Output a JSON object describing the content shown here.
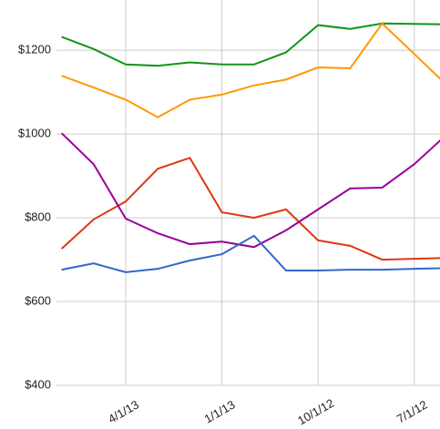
{
  "chart_data": {
    "type": "line",
    "categories": [
      null,
      null,
      "4/1/13",
      null,
      null,
      "1/1/13",
      null,
      null,
      "10/1/12",
      null,
      null,
      "7/1/12",
      null
    ],
    "series": [
      {
        "color": "#109618",
        "values": [
          1232,
          1203,
          1166,
          1163,
          1171,
          1166,
          1166,
          1195,
          1260,
          1251,
          1264,
          1263,
          1262
        ]
      },
      {
        "color": "#ff9900",
        "values": [
          1139,
          1111,
          1082,
          1040,
          1082,
          1094,
          1116,
          1130,
          1159,
          1157,
          1264,
          1191,
          1118
        ]
      },
      {
        "color": "#dc3912",
        "values": [
          726,
          796,
          839,
          917,
          943,
          813,
          800,
          820,
          746,
          733,
          700,
          702,
          704
        ]
      },
      {
        "color": "#990099",
        "values": [
          1002,
          928,
          798,
          763,
          737,
          743,
          730,
          770,
          820,
          870,
          872,
          928,
          998
        ]
      },
      {
        "color": "#3366cc",
        "values": [
          676,
          691,
          670,
          678,
          698,
          713,
          757,
          674,
          674,
          676,
          676,
          678,
          680
        ]
      }
    ],
    "ylim": [
      400,
      1320
    ],
    "yticks": [
      {
        "value": 400,
        "label": "$400"
      },
      {
        "value": 600,
        "label": "$600"
      },
      {
        "value": 800,
        "label": "$800"
      },
      {
        "value": 1000,
        "label": "$1000"
      },
      {
        "value": 1200,
        "label": "$1200"
      }
    ],
    "grid": true
  }
}
